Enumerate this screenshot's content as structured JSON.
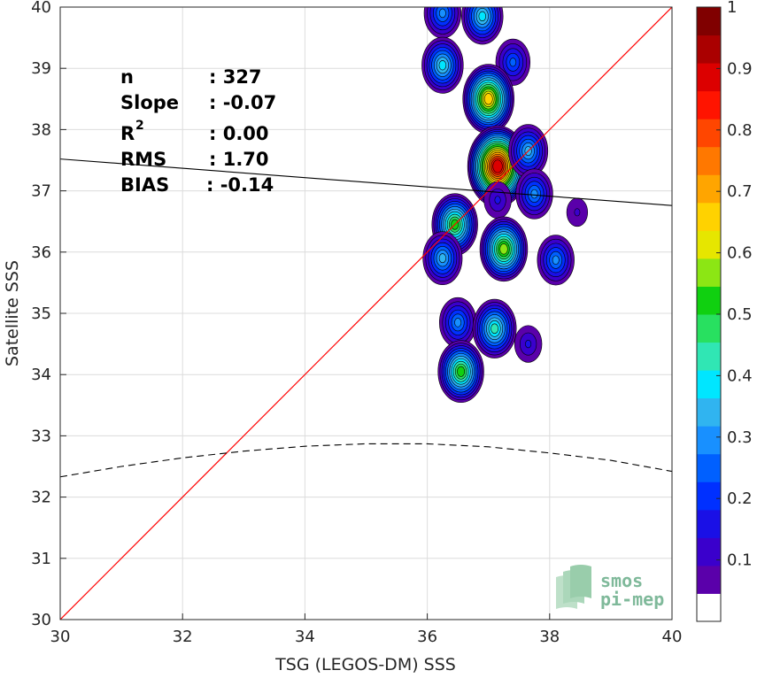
{
  "chart_data": {
    "type": "heatmap",
    "title": "",
    "xlabel": "TSG (LEGOS-DM) SSS",
    "ylabel": "Satellite SSS",
    "xlim": [
      30,
      40
    ],
    "ylim": [
      30,
      40
    ],
    "xticks": [
      30,
      32,
      34,
      36,
      38,
      40
    ],
    "yticks": [
      30,
      31,
      32,
      33,
      34,
      35,
      36,
      37,
      38,
      39,
      40
    ],
    "grid": true,
    "one_to_one_line_color": "#ff0000",
    "regression_line": {
      "slope": -0.07,
      "points": [
        [
          30,
          37.52
        ],
        [
          40,
          36.76
        ]
      ],
      "color": "#000000"
    },
    "dashed_curve": {
      "points": [
        [
          30,
          32.33
        ],
        [
          31,
          32.5
        ],
        [
          32,
          32.64
        ],
        [
          33,
          32.75
        ],
        [
          34,
          32.83
        ],
        [
          35,
          32.87
        ],
        [
          36,
          32.87
        ],
        [
          37,
          32.82
        ],
        [
          38,
          32.72
        ],
        [
          39,
          32.6
        ],
        [
          40,
          32.42
        ]
      ],
      "color": "#000000"
    },
    "density_peaks": [
      {
        "x": 36.25,
        "y": 39.9,
        "value": 0.3
      },
      {
        "x": 36.9,
        "y": 39.85,
        "value": 0.4
      },
      {
        "x": 36.25,
        "y": 39.05,
        "value": 0.4
      },
      {
        "x": 37.4,
        "y": 39.1,
        "value": 0.25
      },
      {
        "x": 37.0,
        "y": 38.5,
        "value": 0.65
      },
      {
        "x": 37.15,
        "y": 37.4,
        "value": 0.9
      },
      {
        "x": 37.65,
        "y": 37.65,
        "value": 0.35
      },
      {
        "x": 37.75,
        "y": 36.95,
        "value": 0.3
      },
      {
        "x": 37.15,
        "y": 36.85,
        "value": 0.15
      },
      {
        "x": 38.45,
        "y": 36.65,
        "value": 0.1
      },
      {
        "x": 36.45,
        "y": 36.45,
        "value": 0.5
      },
      {
        "x": 36.25,
        "y": 35.9,
        "value": 0.35
      },
      {
        "x": 37.25,
        "y": 36.05,
        "value": 0.55
      },
      {
        "x": 38.1,
        "y": 35.87,
        "value": 0.3
      },
      {
        "x": 36.5,
        "y": 34.85,
        "value": 0.3
      },
      {
        "x": 37.1,
        "y": 34.75,
        "value": 0.45
      },
      {
        "x": 37.65,
        "y": 34.5,
        "value": 0.15
      },
      {
        "x": 36.55,
        "y": 34.05,
        "value": 0.5
      }
    ],
    "colorbar": {
      "range": [
        0,
        1
      ],
      "ticks": [
        0.1,
        0.2,
        0.3,
        0.4,
        0.5,
        0.6,
        0.7,
        0.8,
        0.9,
        1
      ],
      "tick_labels": [
        "0.1",
        "0.2",
        "0.3",
        "0.4",
        "0.5",
        "0.6",
        "0.7",
        "0.8",
        "0.9",
        "1"
      ],
      "colors": [
        "#ffffff",
        "#5a00aa",
        "#3a00cc",
        "#1a10e6",
        "#0030ff",
        "#0060ff",
        "#1890ff",
        "#30b4f0",
        "#00e6ff",
        "#30e6b4",
        "#28e060",
        "#10d010",
        "#8ce614",
        "#e6e600",
        "#ffd200",
        "#ffa500",
        "#ff7800",
        "#ff4600",
        "#ff1400",
        "#dc0000",
        "#aa0000",
        "#800000"
      ]
    },
    "stats": [
      {
        "label": "n",
        "value": ": 327"
      },
      {
        "label": "Slope",
        "value": ": -0.07"
      },
      {
        "label": "R",
        "superscript": "2",
        "value": ": 0.00"
      },
      {
        "label": "RMS",
        "value": ": 1.70"
      },
      {
        "label": "BIAS",
        "value": ": -0.14"
      }
    ]
  },
  "logo": {
    "line1": "smos",
    "line2": "pi-mep"
  }
}
